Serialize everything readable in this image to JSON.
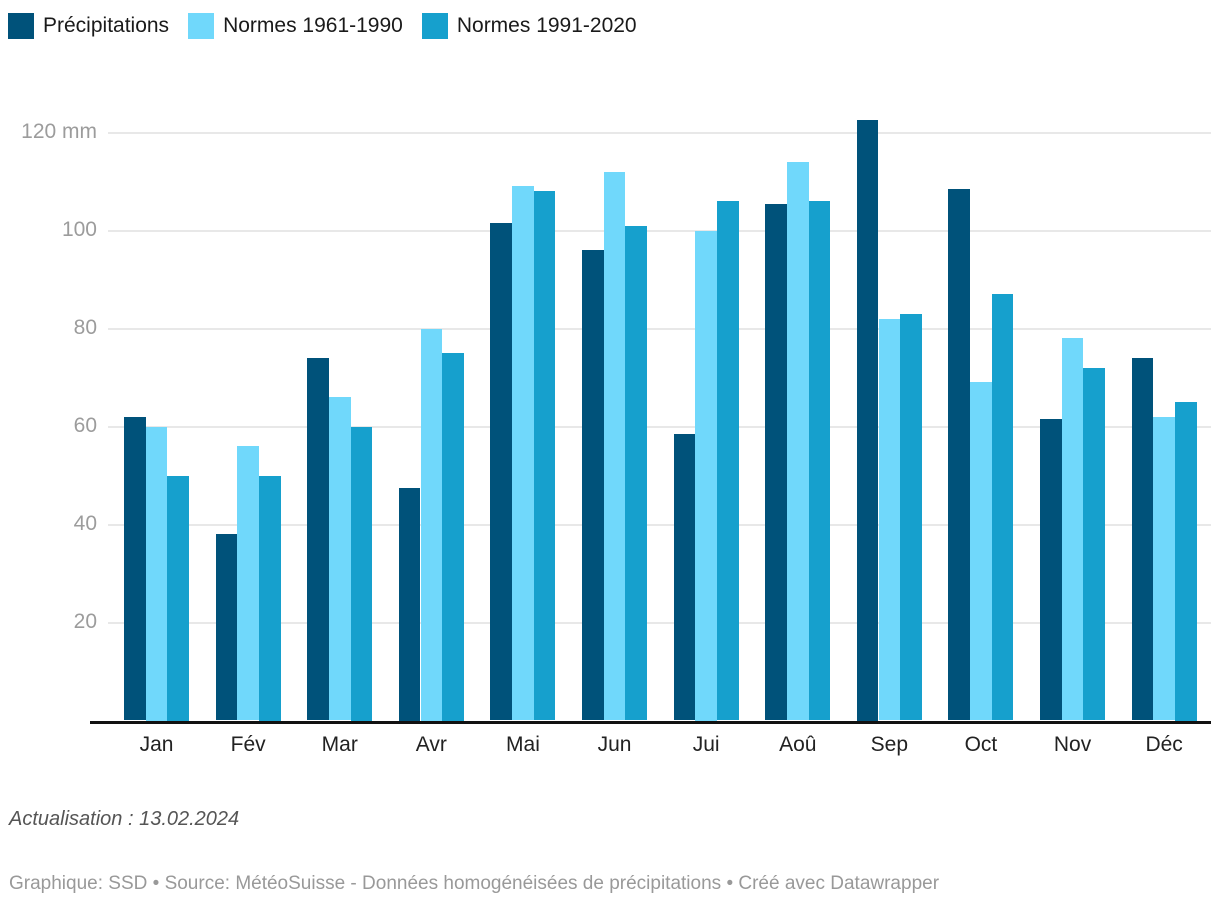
{
  "chart_data": {
    "type": "bar",
    "categories": [
      "Jan",
      "Fév",
      "Mar",
      "Avr",
      "Mai",
      "Jun",
      "Jui",
      "Aoû",
      "Sep",
      "Oct",
      "Nov",
      "Déc"
    ],
    "series": [
      {
        "name": "Précipitations",
        "color": "#00527a",
        "values": [
          62,
          38,
          74,
          47.5,
          101.5,
          96,
          58.5,
          105.5,
          122.5,
          108.5,
          61.5,
          74
        ]
      },
      {
        "name": "Normes 1961-1990",
        "color": "#70d8fb",
        "values": [
          60,
          56,
          66,
          80,
          109,
          112,
          100,
          114,
          82,
          69,
          78,
          62
        ]
      },
      {
        "name": "Normes 1991-2020",
        "color": "#16a0cd",
        "values": [
          50,
          50,
          60,
          75,
          108,
          101,
          106,
          106,
          83,
          87,
          72,
          65
        ]
      }
    ],
    "y_ticks": [
      20,
      40,
      60,
      80,
      100,
      120
    ],
    "y_unit": "mm",
    "ylim": [
      0,
      125
    ],
    "grid": "horizontal",
    "legend_position": "top-left",
    "title": "",
    "xlabel": "",
    "ylabel": ""
  },
  "footer": {
    "update_note": "Actualisation : 13.02.2024",
    "attribution": "Graphique: SSD • Source: MétéoSuisse - Données homogénéisées de précipitations • Créé avec Datawrapper"
  }
}
